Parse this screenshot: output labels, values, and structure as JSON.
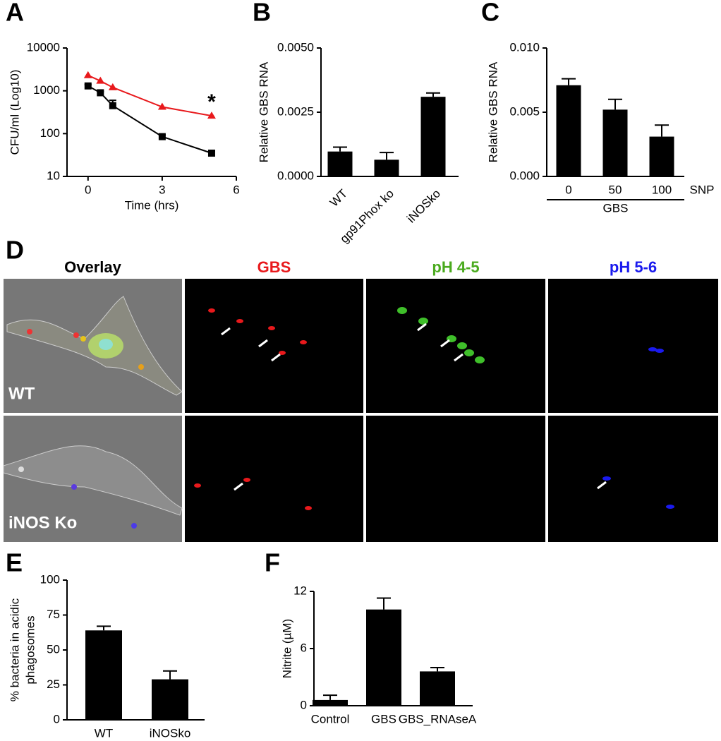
{
  "chart_data": [
    {
      "type": "line",
      "label": "A",
      "ylabel": "CFU/ml (Log10)",
      "xlabel": "Time (hrs)",
      "log_y": true,
      "xlim": [
        -0.85,
        6
      ],
      "xticks": [
        0,
        3,
        6
      ],
      "ylim": [
        10,
        10000
      ],
      "yticks": [
        10,
        100,
        1000,
        10000
      ],
      "annotation": "*",
      "series": [
        {
          "color": "#000000",
          "marker": "square",
          "x": [
            0,
            0.5,
            1,
            3,
            5
          ],
          "values": [
            1300,
            900,
            450,
            85,
            35
          ],
          "errors": [
            100,
            60,
            150,
            8,
            4
          ]
        },
        {
          "color": "#e8191c",
          "marker": "triangle",
          "x": [
            0,
            0.5,
            1,
            3,
            5
          ],
          "values": [
            2300,
            1700,
            1200,
            420,
            260
          ]
        }
      ]
    },
    {
      "type": "bar",
      "label": "B",
      "ylabel": "Relative GBS RNA",
      "categories": [
        "WT",
        "gp91Phox ko",
        "iNOSko"
      ],
      "values": [
        0.00097,
        0.00065,
        0.0031
      ],
      "errors": [
        0.00017,
        0.00028,
        0.00015
      ],
      "color": "#000000",
      "rotate_labels": true,
      "ylim": [
        0,
        0.005
      ],
      "yticks": [
        {
          "value": 0,
          "label": "0.0000"
        },
        {
          "value": 0.0025,
          "label": "0.0025"
        },
        {
          "value": 0.005,
          "label": "0.0050"
        }
      ]
    },
    {
      "type": "bar",
      "label": "C",
      "ylabel": "Relative GBS RNA",
      "categories": [
        "0",
        "50",
        "100"
      ],
      "values": [
        0.0071,
        0.0052,
        0.0031
      ],
      "errors": [
        0.0005,
        0.0008,
        0.0009
      ],
      "color": "#000000",
      "axis_note": "SNP",
      "group_label": "GBS",
      "ylim": [
        0,
        0.01
      ],
      "yticks": [
        {
          "value": 0,
          "label": "0.000"
        },
        {
          "value": 0.005,
          "label": "0.005"
        },
        {
          "value": 0.01,
          "label": "0.010"
        }
      ]
    },
    {
      "type": "bar",
      "label": "E",
      "ylabel": [
        "% bacteria in acidic",
        "phagosomes"
      ],
      "categories": [
        "WT",
        "iNOSko"
      ],
      "values": [
        64,
        29
      ],
      "errors": [
        3,
        6
      ],
      "color": "#000000",
      "ylim": [
        0,
        100
      ],
      "yticks": [
        0,
        25,
        50,
        75,
        100
      ]
    },
    {
      "type": "bar",
      "label": "F",
      "ylabel": "Nitrite (µM)",
      "categories": [
        "Control",
        "GBS",
        "GBS_RNAseA"
      ],
      "values": [
        0.6,
        10.1,
        3.6
      ],
      "errors": [
        0.5,
        1.2,
        0.4
      ],
      "color": "#000000",
      "ylim": [
        0,
        12
      ],
      "yticks": [
        0,
        6,
        12
      ]
    }
  ],
  "microscopy": {
    "label": "D",
    "columns": [
      {
        "title": "Overlay",
        "color": "#000000"
      },
      {
        "title": "GBS",
        "color": "#e8191c"
      },
      {
        "title": "pH 4-5",
        "color": "#4aaa1e"
      },
      {
        "title": "pH 5-6",
        "color": "#1a1aee"
      }
    ],
    "rows": [
      "WT",
      "iNOS Ko"
    ]
  }
}
